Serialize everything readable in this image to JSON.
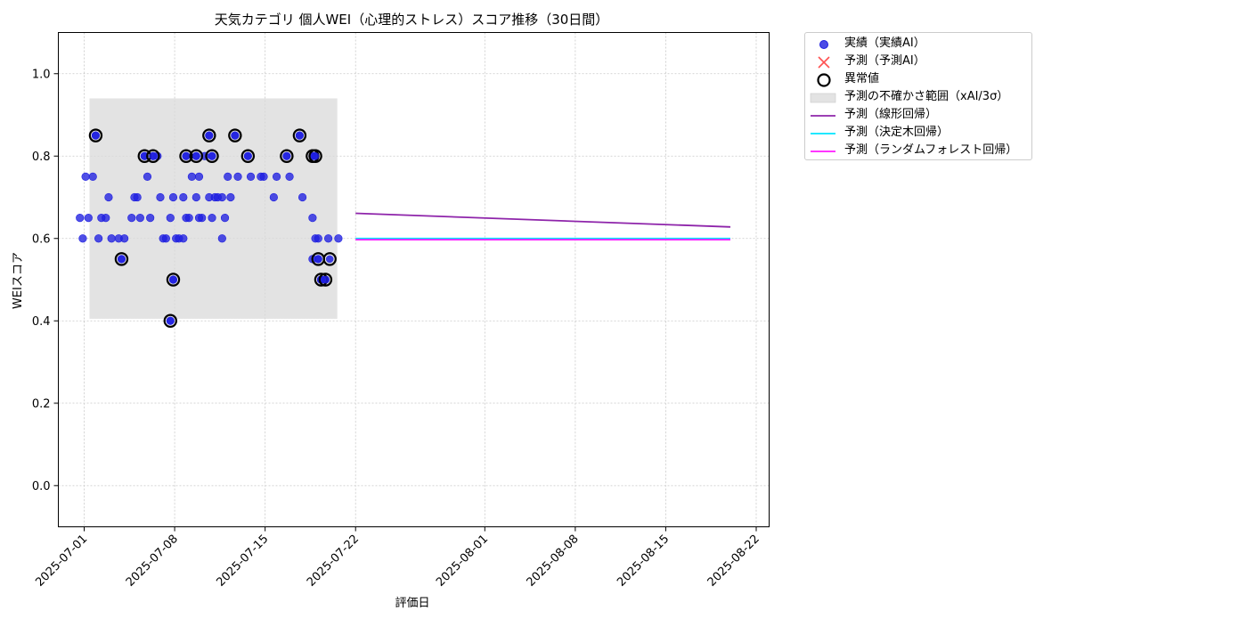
{
  "chart_data": {
    "type": "scatter",
    "title": "天気カテゴリ 個人WEI（心理的ストレス）スコア推移（30日間）",
    "xlabel": "評価日",
    "ylabel": "WEIスコア",
    "xlim": [
      "2025-06-29",
      "2025-08-23"
    ],
    "ylim": [
      -0.1,
      1.1
    ],
    "y_ticks": [
      0.0,
      0.2,
      0.4,
      0.6,
      0.8,
      1.0
    ],
    "x_ticks": [
      "2025-07-01",
      "2025-07-08",
      "2025-07-15",
      "2025-07-22",
      "2025-08-01",
      "2025-08-08",
      "2025-08-15",
      "2025-08-22"
    ],
    "grid": true,
    "legend_position": "outside-upper-right",
    "colors": {
      "actual": "#1f1fe0",
      "predicted_marker": "#ff3333",
      "anomaly": "#000000",
      "band": "#d9d9d9",
      "linear": "#8e24aa",
      "tree": "#00e5ff",
      "forest": "#ff1aff"
    },
    "uncertainty_band": {
      "x_range": [
        "2025-07-01",
        "2025-07-21"
      ],
      "y_range": [
        0.405,
        0.94
      ]
    },
    "series": [
      {
        "name": "実績（実績AI）",
        "kind": "scatter",
        "points": [
          [
            "2025-07-01",
            0.65
          ],
          [
            "2025-07-01",
            0.6
          ],
          [
            "2025-07-01",
            0.75
          ],
          [
            "2025-07-01",
            0.65
          ],
          [
            "2025-07-02",
            0.75
          ],
          [
            "2025-07-02",
            0.85
          ],
          [
            "2025-07-02",
            0.6
          ],
          [
            "2025-07-02",
            0.65
          ],
          [
            "2025-07-03",
            0.65
          ],
          [
            "2025-07-03",
            0.7
          ],
          [
            "2025-07-03",
            0.6
          ],
          [
            "2025-07-04",
            0.6
          ],
          [
            "2025-07-04",
            0.55
          ],
          [
            "2025-07-04",
            0.6
          ],
          [
            "2025-07-05",
            0.65
          ],
          [
            "2025-07-05",
            0.7
          ],
          [
            "2025-07-05",
            0.7
          ],
          [
            "2025-07-05",
            0.65
          ],
          [
            "2025-07-06",
            0.8
          ],
          [
            "2025-07-06",
            0.75
          ],
          [
            "2025-07-06",
            0.65
          ],
          [
            "2025-07-06",
            0.8
          ],
          [
            "2025-07-07",
            0.8
          ],
          [
            "2025-07-07",
            0.7
          ],
          [
            "2025-07-07",
            0.6
          ],
          [
            "2025-07-07",
            0.6
          ],
          [
            "2025-07-08",
            0.4
          ],
          [
            "2025-07-08",
            0.5
          ],
          [
            "2025-07-08",
            0.6
          ],
          [
            "2025-07-08",
            0.6
          ],
          [
            "2025-07-08",
            0.65
          ],
          [
            "2025-07-08",
            0.7
          ],
          [
            "2025-07-09",
            0.6
          ],
          [
            "2025-07-09",
            0.65
          ],
          [
            "2025-07-09",
            0.65
          ],
          [
            "2025-07-09",
            0.75
          ],
          [
            "2025-07-09",
            0.7
          ],
          [
            "2025-07-09",
            0.8
          ],
          [
            "2025-07-10",
            0.8
          ],
          [
            "2025-07-10",
            0.75
          ],
          [
            "2025-07-10",
            0.65
          ],
          [
            "2025-07-10",
            0.8
          ],
          [
            "2025-07-10",
            0.7
          ],
          [
            "2025-07-10",
            0.65
          ],
          [
            "2025-07-11",
            0.7
          ],
          [
            "2025-07-11",
            0.65
          ],
          [
            "2025-07-11",
            0.7
          ],
          [
            "2025-07-11",
            0.7
          ],
          [
            "2025-07-11",
            0.85
          ],
          [
            "2025-07-11",
            0.8
          ],
          [
            "2025-07-12",
            0.7
          ],
          [
            "2025-07-12",
            0.65
          ],
          [
            "2025-07-12",
            0.75
          ],
          [
            "2025-07-12",
            0.7
          ],
          [
            "2025-07-12",
            0.6
          ],
          [
            "2025-07-13",
            0.85
          ],
          [
            "2025-07-13",
            0.75
          ],
          [
            "2025-07-14",
            0.8
          ],
          [
            "2025-07-14",
            0.75
          ],
          [
            "2025-07-15",
            0.75
          ],
          [
            "2025-07-15",
            0.75
          ],
          [
            "2025-07-16",
            0.7
          ],
          [
            "2025-07-16",
            0.75
          ],
          [
            "2025-07-17",
            0.8
          ],
          [
            "2025-07-17",
            0.75
          ],
          [
            "2025-07-18",
            0.85
          ],
          [
            "2025-07-18",
            0.7
          ],
          [
            "2025-07-19",
            0.8
          ],
          [
            "2025-07-19",
            0.8
          ],
          [
            "2025-07-19",
            0.55
          ],
          [
            "2025-07-19",
            0.5
          ],
          [
            "2025-07-19",
            0.65
          ],
          [
            "2025-07-19",
            0.6
          ],
          [
            "2025-07-19",
            0.6
          ],
          [
            "2025-07-19",
            0.5
          ],
          [
            "2025-07-19",
            0.55
          ],
          [
            "2025-07-20",
            0.5
          ],
          [
            "2025-07-20",
            0.6
          ],
          [
            "2025-07-21",
            0.6
          ]
        ]
      },
      {
        "name": "予測（予測AI）",
        "kind": "cross",
        "points": []
      },
      {
        "name": "異常値",
        "kind": "ring",
        "points": [
          [
            "2025-07-02",
            0.85
          ],
          [
            "2025-07-04",
            0.55
          ],
          [
            "2025-07-06",
            0.8
          ],
          [
            "2025-07-06",
            0.8
          ],
          [
            "2025-07-08",
            0.5
          ],
          [
            "2025-07-08",
            0.4
          ],
          [
            "2025-07-09",
            0.8
          ],
          [
            "2025-07-10",
            0.8
          ],
          [
            "2025-07-11",
            0.85
          ],
          [
            "2025-07-11",
            0.8
          ],
          [
            "2025-07-13",
            0.85
          ],
          [
            "2025-07-14",
            0.8
          ],
          [
            "2025-07-17",
            0.8
          ],
          [
            "2025-07-18",
            0.85
          ],
          [
            "2025-07-19",
            0.8
          ],
          [
            "2025-07-19",
            0.8
          ],
          [
            "2025-07-19",
            0.55
          ],
          [
            "2025-07-19",
            0.5
          ],
          [
            "2025-07-20",
            0.55
          ],
          [
            "2025-07-20",
            0.5
          ]
        ]
      },
      {
        "name": "予測の不確かさ範囲（xAI/3σ）",
        "kind": "band"
      },
      {
        "name": "予測（線形回帰）",
        "kind": "line",
        "points": [
          [
            "2025-07-22",
            0.661
          ],
          [
            "2025-08-20",
            0.628
          ]
        ]
      },
      {
        "name": "予測（決定木回帰）",
        "kind": "line",
        "points": [
          [
            "2025-07-22",
            0.6
          ],
          [
            "2025-08-20",
            0.6
          ]
        ]
      },
      {
        "name": "予測（ランダムフォレスト回帰）",
        "kind": "line",
        "points": [
          [
            "2025-07-22",
            0.597
          ],
          [
            "2025-08-20",
            0.597
          ]
        ]
      }
    ]
  }
}
